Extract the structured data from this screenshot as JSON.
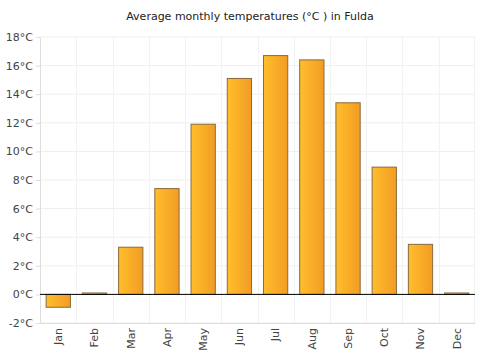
{
  "chart_data": {
    "type": "bar",
    "title": "Average monthly temperatures (°C ) in Fulda",
    "categories": [
      "Jan",
      "Feb",
      "Mar",
      "Apr",
      "May",
      "Jun",
      "Jul",
      "Aug",
      "Sep",
      "Oct",
      "Nov",
      "Dec"
    ],
    "values": [
      -0.9,
      0.1,
      3.3,
      7.4,
      11.9,
      15.1,
      16.7,
      16.4,
      13.4,
      8.9,
      3.5,
      0.1
    ],
    "color": "#ffa526",
    "ylim": [
      -2,
      18
    ],
    "yticks": [
      {
        "value": -2,
        "label": "-2°C"
      },
      {
        "value": 0,
        "label": "0°C"
      },
      {
        "value": 2,
        "label": "2°C"
      },
      {
        "value": 4,
        "label": "4°C"
      },
      {
        "value": 6,
        "label": "6°C"
      },
      {
        "value": 8,
        "label": "8°C"
      },
      {
        "value": 10,
        "label": "10°C"
      },
      {
        "value": 12,
        "label": "12°C"
      },
      {
        "value": 14,
        "label": "14°C"
      },
      {
        "value": 16,
        "label": "16°C"
      },
      {
        "value": 18,
        "label": "18°C"
      }
    ],
    "grid": true
  }
}
